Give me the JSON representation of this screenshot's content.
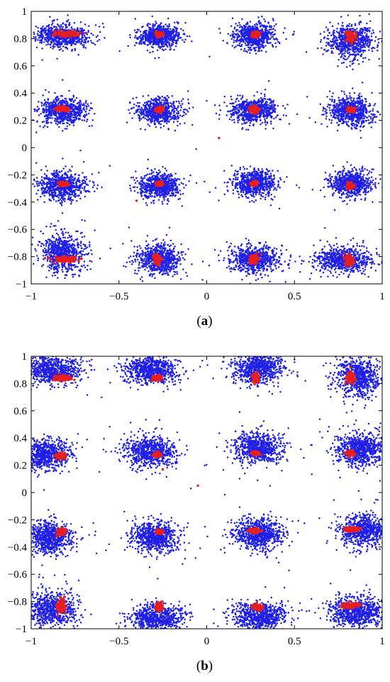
{
  "chart_data": [
    {
      "type": "scatter",
      "caption": {
        "open": "(",
        "letter": "a",
        "close": ")"
      },
      "title": "",
      "xlabel": "",
      "ylabel": "",
      "xlim": [
        -1,
        1
      ],
      "ylim": [
        -1,
        1
      ],
      "xticks": [
        -1,
        -0.5,
        0,
        0.5,
        1
      ],
      "xtick_labels": [
        "−1",
        "−0.5",
        "0",
        "0.5",
        "1"
      ],
      "yticks": [
        1,
        0.8,
        0.6,
        0.4,
        0.2,
        0,
        -0.2,
        -0.4,
        -0.6,
        -0.8,
        -1
      ],
      "ytick_labels": [
        "1",
        "0.8",
        "0.6",
        "0.4",
        "0.2",
        "0",
        "−0.2",
        "−0.4",
        "−0.6",
        "−0.8",
        "−1"
      ],
      "grid": false,
      "colors": {
        "blue": "#1f1fe6",
        "red": "#e61f1f"
      },
      "constellation_levels": [
        -0.82,
        -0.28,
        0.28,
        0.82
      ],
      "series": [
        {
          "color_key": "blue",
          "clusters": [
            {
              "x": -0.82,
              "y": 0.82,
              "sx": 0.075,
              "sy": 0.04
            },
            {
              "x": -0.27,
              "y": 0.82,
              "sx": 0.06,
              "sy": 0.04
            },
            {
              "x": 0.27,
              "y": 0.82,
              "sx": 0.06,
              "sy": 0.045
            },
            {
              "x": 0.82,
              "y": 0.78,
              "sx": 0.06,
              "sy": 0.06
            },
            {
              "x": -0.82,
              "y": 0.27,
              "sx": 0.065,
              "sy": 0.045
            },
            {
              "x": -0.27,
              "y": 0.27,
              "sx": 0.06,
              "sy": 0.045
            },
            {
              "x": 0.27,
              "y": 0.27,
              "sx": 0.065,
              "sy": 0.045
            },
            {
              "x": 0.82,
              "y": 0.27,
              "sx": 0.06,
              "sy": 0.05
            },
            {
              "x": -0.82,
              "y": -0.28,
              "sx": 0.065,
              "sy": 0.05
            },
            {
              "x": -0.27,
              "y": -0.28,
              "sx": 0.055,
              "sy": 0.045
            },
            {
              "x": 0.27,
              "y": -0.26,
              "sx": 0.06,
              "sy": 0.045
            },
            {
              "x": 0.82,
              "y": -0.26,
              "sx": 0.06,
              "sy": 0.045
            },
            {
              "x": -0.82,
              "y": -0.77,
              "sx": 0.06,
              "sy": 0.07
            },
            {
              "x": -0.27,
              "y": -0.82,
              "sx": 0.06,
              "sy": 0.055
            },
            {
              "x": 0.27,
              "y": -0.82,
              "sx": 0.07,
              "sy": 0.05
            },
            {
              "x": 0.78,
              "y": -0.82,
              "sx": 0.085,
              "sy": 0.045
            }
          ],
          "points_per_cluster": 700
        },
        {
          "color_key": "red",
          "clusters": [
            {
              "x": -0.8,
              "y": 0.835,
              "sx": 0.04,
              "sy": 0.01
            },
            {
              "x": -0.27,
              "y": 0.83,
              "sx": 0.012,
              "sy": 0.008
            },
            {
              "x": 0.28,
              "y": 0.83,
              "sx": 0.01,
              "sy": 0.01
            },
            {
              "x": 0.82,
              "y": 0.81,
              "sx": 0.012,
              "sy": 0.02
            },
            {
              "x": -0.82,
              "y": 0.285,
              "sx": 0.02,
              "sy": 0.01
            },
            {
              "x": -0.27,
              "y": 0.28,
              "sx": 0.01,
              "sy": 0.008
            },
            {
              "x": 0.27,
              "y": 0.28,
              "sx": 0.012,
              "sy": 0.012
            },
            {
              "x": 0.82,
              "y": 0.28,
              "sx": 0.012,
              "sy": 0.01
            },
            {
              "x": -0.82,
              "y": -0.265,
              "sx": 0.015,
              "sy": 0.008
            },
            {
              "x": -0.27,
              "y": -0.265,
              "sx": 0.01,
              "sy": 0.008
            },
            {
              "x": 0.27,
              "y": -0.265,
              "sx": 0.01,
              "sy": 0.008
            },
            {
              "x": 0.82,
              "y": -0.28,
              "sx": 0.01,
              "sy": 0.01
            },
            {
              "x": -0.8,
              "y": -0.82,
              "sx": 0.04,
              "sy": 0.01
            },
            {
              "x": -0.28,
              "y": -0.82,
              "sx": 0.01,
              "sy": 0.015
            },
            {
              "x": 0.27,
              "y": -0.82,
              "sx": 0.012,
              "sy": 0.015
            },
            {
              "x": 0.81,
              "y": -0.83,
              "sx": 0.012,
              "sy": 0.02
            }
          ],
          "points_per_cluster": 110,
          "outliers": [
            {
              "x": 0.07,
              "y": 0.07
            },
            {
              "x": -0.4,
              "y": -0.39
            }
          ]
        }
      ],
      "blue_outliers": [
        {
          "x": -0.06,
          "y": -0.01
        }
      ]
    },
    {
      "type": "scatter",
      "caption": {
        "open": "(",
        "letter": "b",
        "close": ")"
      },
      "title": "",
      "xlabel": "",
      "ylabel": "",
      "xlim": [
        -1,
        1
      ],
      "ylim": [
        -1,
        1
      ],
      "xticks": [
        -1,
        -0.5,
        0,
        0.5,
        1
      ],
      "xtick_labels": [
        "−1",
        "−0.5",
        "0",
        "0.5",
        "1"
      ],
      "yticks": [
        1,
        0.8,
        0.6,
        0.4,
        0.2,
        0,
        -0.2,
        -0.4,
        -0.6,
        -0.8,
        -1
      ],
      "ytick_labels": [
        "1",
        "0.8",
        "0.6",
        "0.4",
        "0.2",
        "0",
        "−0.2",
        "−0.4",
        "−0.6",
        "−0.8",
        "−1"
      ],
      "grid": false,
      "colors": {
        "blue": "#1f1fe6",
        "red": "#e61f1f"
      },
      "constellation_levels": [
        -0.85,
        -0.3,
        0.3,
        0.85
      ],
      "series": [
        {
          "color_key": "blue",
          "clusters": [
            {
              "x": -0.88,
              "y": 0.9,
              "sx": 0.085,
              "sy": 0.05
            },
            {
              "x": -0.32,
              "y": 0.9,
              "sx": 0.075,
              "sy": 0.05
            },
            {
              "x": 0.29,
              "y": 0.91,
              "sx": 0.07,
              "sy": 0.055
            },
            {
              "x": 0.86,
              "y": 0.85,
              "sx": 0.065,
              "sy": 0.07
            },
            {
              "x": -0.92,
              "y": 0.28,
              "sx": 0.07,
              "sy": 0.055
            },
            {
              "x": -0.32,
              "y": 0.3,
              "sx": 0.07,
              "sy": 0.055
            },
            {
              "x": 0.29,
              "y": 0.33,
              "sx": 0.07,
              "sy": 0.055
            },
            {
              "x": 0.88,
              "y": 0.32,
              "sx": 0.07,
              "sy": 0.06
            },
            {
              "x": -0.9,
              "y": -0.33,
              "sx": 0.07,
              "sy": 0.06
            },
            {
              "x": -0.3,
              "y": -0.33,
              "sx": 0.065,
              "sy": 0.055
            },
            {
              "x": 0.3,
              "y": -0.3,
              "sx": 0.07,
              "sy": 0.055
            },
            {
              "x": 0.9,
              "y": -0.28,
              "sx": 0.07,
              "sy": 0.06
            },
            {
              "x": -0.88,
              "y": -0.86,
              "sx": 0.07,
              "sy": 0.065
            },
            {
              "x": -0.28,
              "y": -0.92,
              "sx": 0.075,
              "sy": 0.05
            },
            {
              "x": 0.3,
              "y": -0.91,
              "sx": 0.08,
              "sy": 0.05
            },
            {
              "x": 0.86,
              "y": -0.88,
              "sx": 0.08,
              "sy": 0.055
            }
          ],
          "points_per_cluster": 750
        },
        {
          "color_key": "red",
          "clusters": [
            {
              "x": -0.82,
              "y": 0.84,
              "sx": 0.025,
              "sy": 0.01
            },
            {
              "x": -0.28,
              "y": 0.84,
              "sx": 0.012,
              "sy": 0.01
            },
            {
              "x": 0.28,
              "y": 0.84,
              "sx": 0.01,
              "sy": 0.015
            },
            {
              "x": 0.82,
              "y": 0.84,
              "sx": 0.012,
              "sy": 0.02
            },
            {
              "x": -0.83,
              "y": 0.27,
              "sx": 0.015,
              "sy": 0.01
            },
            {
              "x": -0.28,
              "y": 0.28,
              "sx": 0.01,
              "sy": 0.008
            },
            {
              "x": 0.28,
              "y": 0.29,
              "sx": 0.01,
              "sy": 0.008
            },
            {
              "x": 0.82,
              "y": 0.29,
              "sx": 0.012,
              "sy": 0.01
            },
            {
              "x": -0.83,
              "y": -0.29,
              "sx": 0.012,
              "sy": 0.012
            },
            {
              "x": -0.27,
              "y": -0.29,
              "sx": 0.01,
              "sy": 0.008
            },
            {
              "x": 0.27,
              "y": -0.28,
              "sx": 0.015,
              "sy": 0.008
            },
            {
              "x": 0.83,
              "y": -0.27,
              "sx": 0.02,
              "sy": 0.008
            },
            {
              "x": -0.83,
              "y": -0.83,
              "sx": 0.012,
              "sy": 0.025
            },
            {
              "x": -0.27,
              "y": -0.84,
              "sx": 0.01,
              "sy": 0.015
            },
            {
              "x": 0.29,
              "y": -0.84,
              "sx": 0.012,
              "sy": 0.01
            },
            {
              "x": 0.82,
              "y": -0.83,
              "sx": 0.025,
              "sy": 0.01
            }
          ],
          "points_per_cluster": 110,
          "outliers": [
            {
              "x": -0.05,
              "y": 0.05
            },
            {
              "x": -0.25,
              "y": 0.17
            }
          ]
        }
      ],
      "blue_outliers": [
        {
          "x": -0.09,
          "y": 0.03
        }
      ]
    }
  ]
}
